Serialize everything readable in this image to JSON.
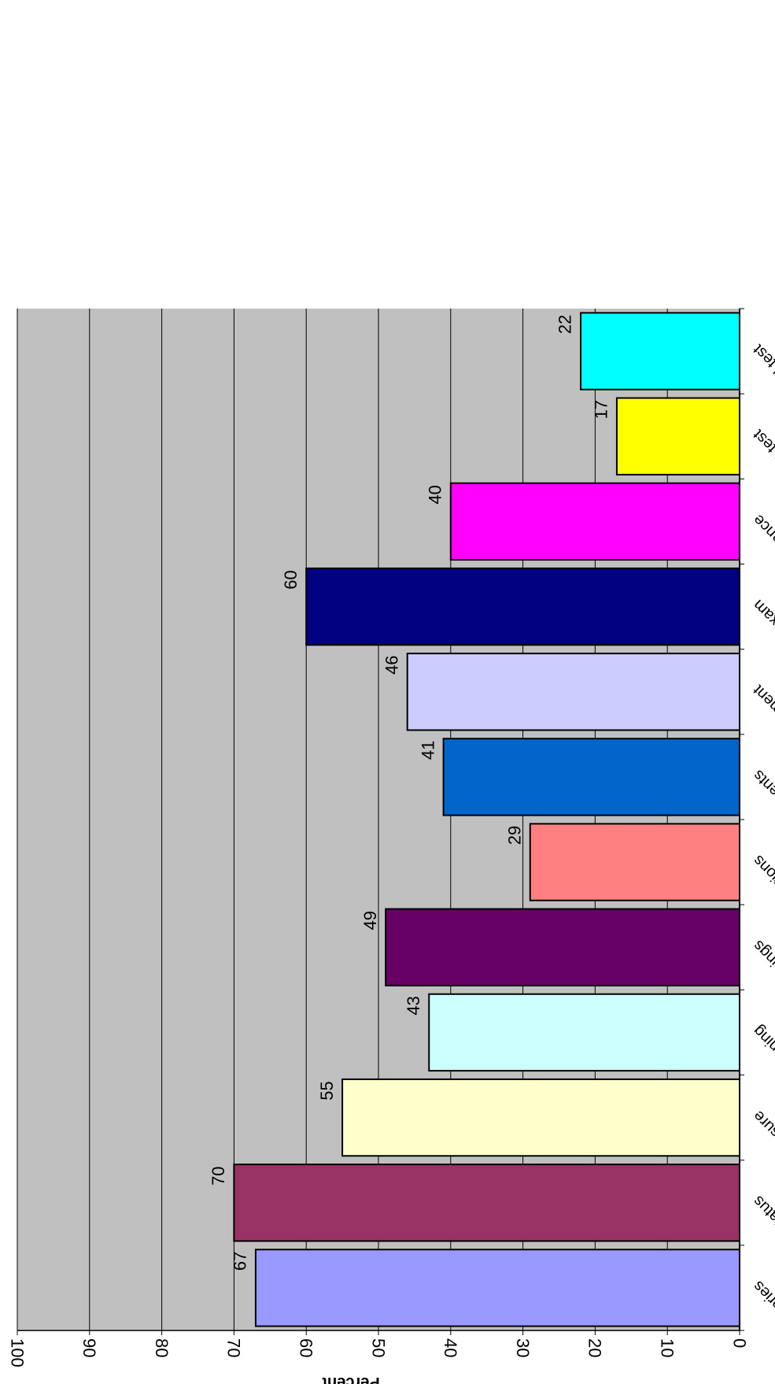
{
  "chart_data": {
    "type": "bar",
    "orientation": "rotated-180",
    "title": "",
    "ylabel": "Percent",
    "xlabel": "",
    "ylim": [
      0,
      100
    ],
    "yticks": [
      0,
      10,
      20,
      30,
      40,
      50,
      60,
      70,
      80,
      90,
      100
    ],
    "grid": true,
    "plot_background": "#c0c0c0",
    "categories": [
      "initial/interval histories",
      "immunization status",
      "blood pressure",
      "vision screening",
      "hearing screenings",
      "dental inspections",
      "nutritional assessments",
      "developmental assessment",
      "physical exam",
      "anticipatory guidance",
      "TB test",
      "lead blood test"
    ],
    "values": [
      67,
      70,
      55,
      43,
      49,
      29,
      41,
      46,
      60,
      40,
      17,
      22
    ],
    "colors": [
      "#9999ff",
      "#993366",
      "#ffffcc",
      "#ccffff",
      "#660066",
      "#ff8080",
      "#0066cc",
      "#ccccff",
      "#000080",
      "#ff00ff",
      "#ffff00",
      "#00ffff"
    ]
  }
}
